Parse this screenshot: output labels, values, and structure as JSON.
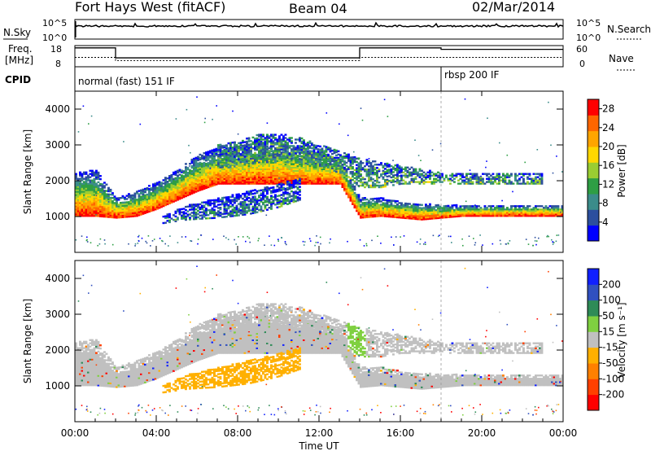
{
  "header": {
    "radar": "Fort Hays West (fitACF)",
    "beam": "Beam 04",
    "date": "02/Mar/2014"
  },
  "noise_panel": {
    "left_label": "N.Sky",
    "left_top_tick": "10^5",
    "left_bottom_tick": "10^0",
    "right_top_tick": "10^5",
    "right_bottom_tick": "10^0",
    "right_label": "N.Search"
  },
  "freq_panel": {
    "left_label_line1": "Freq.",
    "left_label_line2": "[MHz]",
    "left_top_tick": "18",
    "left_bottom_tick": "8",
    "right_top_tick": "60",
    "right_bottom_tick": "0",
    "right_label": "Nave"
  },
  "cpid_panel": {
    "label": "CPID",
    "modes": [
      {
        "name": "normal (fast) 151 IF",
        "start_hour": 0
      },
      {
        "name": "rbsp 200 IF",
        "start_hour": 18
      }
    ]
  },
  "colors": {
    "power": [
      "#0000ff",
      "#2c4f9e",
      "#3b8c8a",
      "#2e9e44",
      "#9acd32",
      "#ffd700",
      "#ffa500",
      "#ff6600",
      "#ff0000"
    ],
    "velocity": [
      "#ff0000",
      "#ff4000",
      "#ff8000",
      "#ffb000",
      "#c0c0c0",
      "#7fd040",
      "#2e8b57",
      "#3050c0",
      "#1020ff"
    ]
  },
  "chart_data": [
    {
      "type": "heatmap",
      "panel": "power",
      "ylabel": "Slant Range [km]",
      "xlabel": "",
      "xlim": [
        "00:00",
        "24:00"
      ],
      "ylim": [
        0,
        4500
      ],
      "y_ticks": [
        "1000",
        "2000",
        "3000",
        "4000"
      ],
      "colorbar_label": "Power [dB]",
      "colorbar_ticks": [
        "4",
        "8",
        "12",
        "16",
        "20",
        "24",
        "28"
      ],
      "colorbar_range": [
        0,
        30
      ],
      "bands": [
        {
          "name": "main",
          "t": [
            0,
            1,
            2,
            3,
            4,
            5,
            6,
            7,
            8,
            9,
            10,
            11,
            12,
            13,
            14,
            15,
            16,
            17,
            18,
            19,
            20,
            21,
            22,
            23,
            24
          ],
          "low": [
            1000,
            1000,
            950,
            1000,
            1200,
            1450,
            1700,
            1900,
            1900,
            1900,
            1900,
            1900,
            1900,
            1900,
            950,
            1000,
            950,
            900,
            950,
            1000,
            1000,
            1000,
            1000,
            1000,
            1000
          ],
          "high": [
            2200,
            2300,
            1500,
            1700,
            1950,
            2300,
            2700,
            2900,
            2900,
            3100,
            3050,
            2900,
            2800,
            2600,
            1500,
            1500,
            1400,
            1350,
            1300,
            1300,
            1300,
            1300,
            1300,
            1300,
            1300
          ]
        },
        {
          "name": "upper",
          "t": [
            7,
            8,
            9,
            10,
            11,
            12,
            13,
            14,
            15,
            16,
            17,
            18,
            19,
            20,
            21,
            22,
            23
          ],
          "low": [
            2300,
            2400,
            2500,
            2500,
            2500,
            2400,
            2200,
            1800,
            1800,
            1900,
            1900,
            1900,
            1900,
            1900,
            1900,
            1900,
            1900
          ],
          "high": [
            3000,
            3100,
            3300,
            3300,
            3200,
            3000,
            2800,
            2600,
            2500,
            2400,
            2300,
            2200,
            2200,
            2200,
            2200,
            2200,
            2200
          ]
        },
        {
          "name": "lower",
          "t": [
            4.3,
            5.5,
            7,
            8.5,
            10,
            11
          ],
          "low": [
            800,
            900,
            950,
            1050,
            1250,
            1450
          ],
          "high": [
            1000,
            1300,
            1500,
            1700,
            1900,
            2050
          ]
        }
      ]
    },
    {
      "type": "heatmap",
      "panel": "velocity",
      "ylabel": "Slant Range [km]",
      "xlabel": "Time UT",
      "xlim": [
        "00:00",
        "24:00"
      ],
      "ylim": [
        0,
        4500
      ],
      "x_ticks": [
        "00:00",
        "04:00",
        "08:00",
        "12:00",
        "16:00",
        "20:00",
        "00:00"
      ],
      "y_ticks": [
        "1000",
        "2000",
        "3000",
        "4000"
      ],
      "colorbar_label": "Velocity [m s⁻¹]",
      "colorbar_ticks": [
        "200",
        "100",
        "50",
        "15",
        "-15",
        "-50",
        "-100",
        "-200"
      ],
      "colorbar_range": [
        -250,
        250
      ]
    }
  ]
}
